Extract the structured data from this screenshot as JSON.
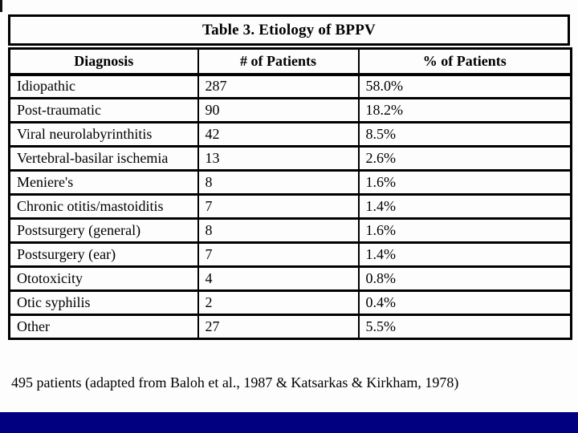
{
  "slide": {
    "title": "Table 3.  Etiology of BPPV",
    "footer": "495 patients (adapted from Baloh et al., 1987 & Katsarkas & Kirkham, 1978)",
    "colors": {
      "accent_bar": "#000080",
      "text": "#000000",
      "background": "#fdfdfd",
      "table_border": "#000000"
    }
  },
  "table": {
    "columns": [
      "Diagnosis",
      "# of Patients",
      "% of Patients"
    ],
    "rows": [
      {
        "diagnosis": "Idiopathic",
        "patients": "287",
        "percent": "58.0%"
      },
      {
        "diagnosis": "Post-traumatic",
        "patients": "90",
        "percent": "18.2%"
      },
      {
        "diagnosis": "Viral neurolabyrinthitis",
        "patients": "42",
        "percent": "8.5%"
      },
      {
        "diagnosis": "Vertebral-basilar ischemia",
        "patients": "13",
        "percent": "2.6%"
      },
      {
        "diagnosis": "Meniere's",
        "patients": "8",
        "percent": "1.6%"
      },
      {
        "diagnosis": "Chronic otitis/mastoiditis",
        "patients": "7",
        "percent": "1.4%"
      },
      {
        "diagnosis": "Postsurgery (general)",
        "patients": "8",
        "percent": "1.6%"
      },
      {
        "diagnosis": "Postsurgery (ear)",
        "patients": "7",
        "percent": "1.4%"
      },
      {
        "diagnosis": "Ototoxicity",
        "patients": "4",
        "percent": "0.8%"
      },
      {
        "diagnosis": "Otic syphilis",
        "patients": "2",
        "percent": "0.4%"
      },
      {
        "diagnosis": "Other",
        "patients": "27",
        "percent": "5.5%"
      }
    ]
  }
}
